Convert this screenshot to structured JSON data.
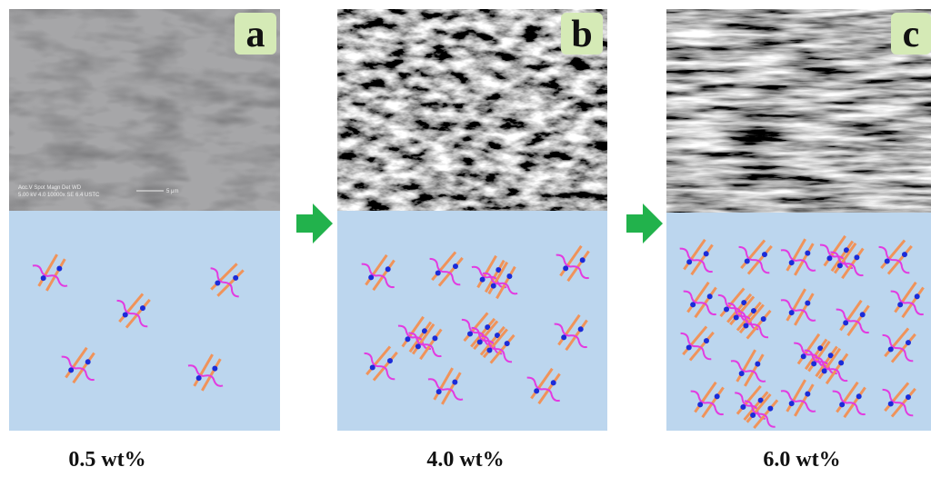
{
  "panels": [
    {
      "label": "a",
      "caption": "0.5 wt%",
      "sem_info": {
        "header": "Acc.V  Spot Magn   Det  WD",
        "line": "5.00 kV 4.0  10000x  SE   6.4  USTC",
        "scale": "5 μm"
      }
    },
    {
      "label": "b",
      "caption": "4.0 wt%"
    },
    {
      "label": "c",
      "caption": "6.0 wt%"
    }
  ]
}
